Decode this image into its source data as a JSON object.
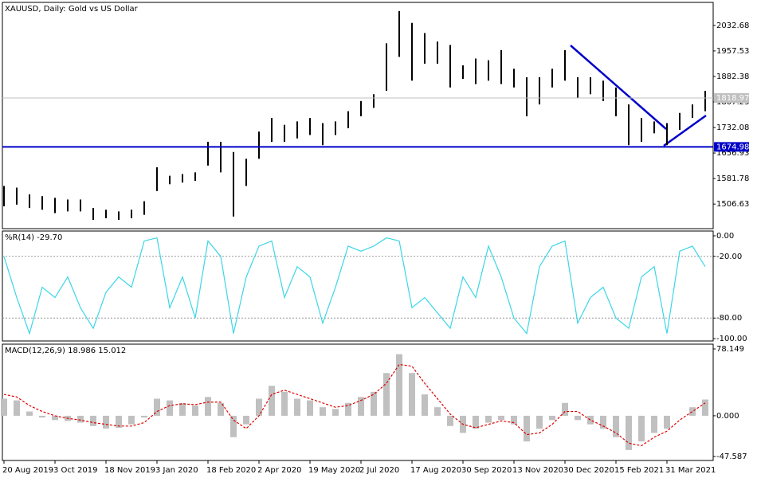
{
  "chart_data": [
    {
      "type": "range",
      "title": "XAUUSD, Daily:  Gold vs US Dollar",
      "color": "#000000",
      "high": [
        1560,
        1555,
        1535,
        1530,
        1525,
        1520,
        1520,
        1495,
        1490,
        1485,
        1490,
        1515,
        1615,
        1590,
        1595,
        1600,
        1690,
        1690,
        1660,
        1640,
        1720,
        1760,
        1740,
        1750,
        1760,
        1745,
        1750,
        1780,
        1810,
        1830,
        1980,
        2075,
        2040,
        2010,
        1985,
        1975,
        1915,
        1935,
        1930,
        1960,
        1905,
        1880,
        1880,
        1905,
        1960,
        1880,
        1880,
        1870,
        1850,
        1800,
        1760,
        1750,
        1745,
        1775,
        1800,
        1840
      ],
      "low": [
        1500,
        1505,
        1495,
        1490,
        1480,
        1485,
        1485,
        1460,
        1465,
        1460,
        1465,
        1475,
        1545,
        1565,
        1570,
        1575,
        1620,
        1600,
        1470,
        1560,
        1640,
        1690,
        1690,
        1700,
        1710,
        1680,
        1710,
        1730,
        1765,
        1790,
        1840,
        1940,
        1870,
        1920,
        1920,
        1850,
        1875,
        1860,
        1870,
        1860,
        1850,
        1765,
        1800,
        1850,
        1870,
        1820,
        1830,
        1810,
        1765,
        1680,
        1690,
        1715,
        1680,
        1725,
        1760,
        1780
      ],
      "ylim": [
        1434.3,
        2100.4
      ],
      "yticks": [
        1506.63,
        1581.78,
        1656.93,
        1732.08,
        1807.23,
        1882.38,
        1957.53,
        2032.68
      ],
      "hlines": [
        {
          "value": 1818.97,
          "color": "#c0c0c0"
        },
        {
          "value": 1674.98,
          "color": "#0000c8"
        }
      ]
    },
    {
      "type": "line",
      "title": "%R(14) -29.70",
      "color": "#3cd6e6",
      "values": [
        -20,
        -60,
        -95,
        -50,
        -60,
        -40,
        -70,
        -90,
        -55,
        -40,
        -50,
        -5,
        -2,
        -70,
        -40,
        -80,
        -5,
        -20,
        -95,
        -40,
        -10,
        -5,
        -60,
        -30,
        -40,
        -85,
        -50,
        -10,
        -15,
        -10,
        -2,
        -5,
        -70,
        -60,
        -75,
        -90,
        -40,
        -60,
        -10,
        -40,
        -80,
        -95,
        -30,
        -10,
        -5,
        -85,
        -60,
        -50,
        -80,
        -90,
        -40,
        -30,
        -95,
        -15,
        -10,
        -30
      ],
      "ylim": [
        -102.3,
        4.65
      ],
      "yticks": [
        {
          "value": 0,
          "label": "0.00"
        },
        {
          "value": -20,
          "label": "-20.00"
        },
        {
          "value": -80,
          "label": "-80.00"
        },
        {
          "value": -100,
          "label": "-100.00"
        }
      ],
      "levels": [
        -20,
        -80
      ]
    },
    {
      "type": "macd",
      "title": "MACD(12,26,9) 18.986 15.012",
      "categories": [
        "20 Aug 2019",
        null,
        null,
        null,
        "3 Oct 2019",
        null,
        null,
        null,
        "18 Nov 2019",
        null,
        null,
        null,
        "3 Jan 2020",
        null,
        null,
        null,
        "18 Feb 2020",
        null,
        null,
        null,
        "2 Apr 2020",
        null,
        null,
        null,
        "19 May 2020",
        null,
        null,
        null,
        "2 Jul 2020",
        null,
        null,
        null,
        "17 Aug 2020",
        null,
        null,
        null,
        "30 Sep 2020",
        null,
        null,
        null,
        "13 Nov 2020",
        null,
        null,
        null,
        "30 Dec 2020",
        null,
        null,
        null,
        "15 Feb 2021",
        null,
        null,
        null,
        "31 Mar 2021",
        null,
        null,
        null
      ],
      "series": [
        {
          "color": "#c0c0c0",
          "values": [
            20,
            18,
            5,
            -2,
            -5,
            -6,
            -8,
            -12,
            -15,
            -14,
            -10,
            -2,
            20,
            18,
            15,
            12,
            22,
            15,
            -25,
            -10,
            20,
            35,
            28,
            20,
            18,
            10,
            8,
            15,
            22,
            28,
            50,
            72,
            50,
            25,
            10,
            -12,
            -20,
            -15,
            -8,
            -5,
            -10,
            -30,
            -15,
            -5,
            15,
            -5,
            -10,
            -15,
            -25,
            -40,
            -30,
            -20,
            -15,
            0,
            10,
            19
          ]
        },
        {
          "color": "#e00000",
          "values": [
            25,
            22,
            12,
            5,
            0,
            -3,
            -5,
            -8,
            -10,
            -12,
            -12,
            -8,
            5,
            12,
            14,
            13,
            16,
            16,
            -5,
            -15,
            0,
            25,
            30,
            25,
            20,
            15,
            10,
            12,
            18,
            25,
            38,
            60,
            58,
            38,
            20,
            2,
            -10,
            -14,
            -10,
            -6,
            -8,
            -22,
            -20,
            -10,
            5,
            5,
            -5,
            -12,
            -20,
            -32,
            -35,
            -25,
            -18,
            -5,
            5,
            15
          ]
        }
      ],
      "ylim": [
        -52.24,
        83.73
      ],
      "yticks": [
        78.149,
        {
          "value": 0,
          "label": "0.000"
        },
        -47.587
      ]
    }
  ]
}
